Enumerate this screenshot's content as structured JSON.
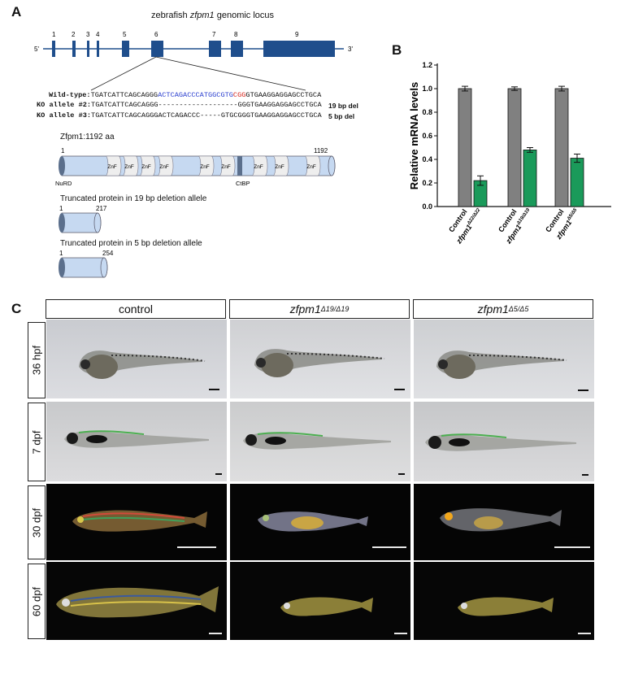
{
  "panelA": {
    "letter": "A",
    "locus_title_pre": "zebrafish ",
    "locus_title_gene": "zfpm1",
    "locus_title_post": " genomic locus",
    "five_prime": "5'",
    "three_prime": "3'",
    "exons": [
      "1",
      "2",
      "3",
      "4",
      "5",
      "6",
      "7",
      "8",
      "9"
    ],
    "wt_label": "Wild-type:",
    "wt_seq_a": "TGATCATTCAGCAGGG",
    "wt_seq_b": "ACTCAGACCCATGGCGTG",
    "wt_seq_c": "CGG",
    "wt_seq_d": "GTGAAGGAGGAGCCTGCA",
    "ko2_label": "KO allele #2:",
    "ko2_seq": "TGATCATTCAGCAGGG-------------------GGGTGAAGGAGGAGCCTGCA",
    "ko2_note": "19 bp del",
    "ko3_label": "KO allele #3:",
    "ko3_seq": "TGATCATTCAGCAGGGACTCAGACCC-----GTGCGGGTGAAGGAGGAGCCTGCA",
    "ko3_note": "5 bp del",
    "protein_title": "Zfpm1:1192 aa",
    "protein_start": "1",
    "protein_end": "1192",
    "znf": "ZnF",
    "nurd": "NuRD",
    "ctbp": "CtBP",
    "trunc19_title": "Truncated protein in 19 bp deletion allele",
    "trunc19_start": "1",
    "trunc19_end": "217",
    "trunc5_title": "Truncated protein in 5 bp deletion allele",
    "trunc5_start": "1",
    "trunc5_end": "254",
    "colors": {
      "exon": "#1f4e8c",
      "protein": "#c6d9f1",
      "znf": "#eeeeee",
      "blue_seq": "#2b3fcf",
      "red_seq": "#d8281e"
    }
  },
  "panelB": {
    "letter": "B",
    "chart_data": {
      "type": "bar",
      "ylabel": "Relative mRNA levels",
      "ylim": [
        0,
        1.2
      ],
      "yticks": [
        "0.0",
        "0.2",
        "0.4",
        "0.6",
        "0.8",
        "1.0",
        "1.2"
      ],
      "groups": [
        {
          "control_label": "Control",
          "mutant_label": "zfpm1",
          "mutant_sup": "Δ22/Δ22",
          "control_value": 1.0,
          "control_err": 0.02,
          "mutant_value": 0.22,
          "mutant_err": 0.04
        },
        {
          "control_label": "Control",
          "mutant_label": "zfpm1",
          "mutant_sup": "Δ19/Δ19",
          "control_value": 1.0,
          "control_err": 0.015,
          "mutant_value": 0.48,
          "mutant_err": 0.02
        },
        {
          "control_label": "Control",
          "mutant_label": "zfpm1",
          "mutant_sup": "Δ5/Δ5",
          "control_value": 1.0,
          "control_err": 0.02,
          "mutant_value": 0.41,
          "mutant_err": 0.035
        }
      ],
      "colors": {
        "control": "#808080",
        "mutant": "#1a9a5a"
      }
    }
  },
  "panelC": {
    "letter": "C",
    "columns": [
      {
        "label": "control",
        "italic": false,
        "sup": ""
      },
      {
        "label": "zfpm1",
        "italic": true,
        "sup": "Δ19/Δ19"
      },
      {
        "label": "zfpm1",
        "italic": true,
        "sup": "Δ5/Δ5"
      }
    ],
    "rows": [
      "36 hpf",
      "7 dpf",
      "30 dpf",
      "60 dpf"
    ]
  }
}
